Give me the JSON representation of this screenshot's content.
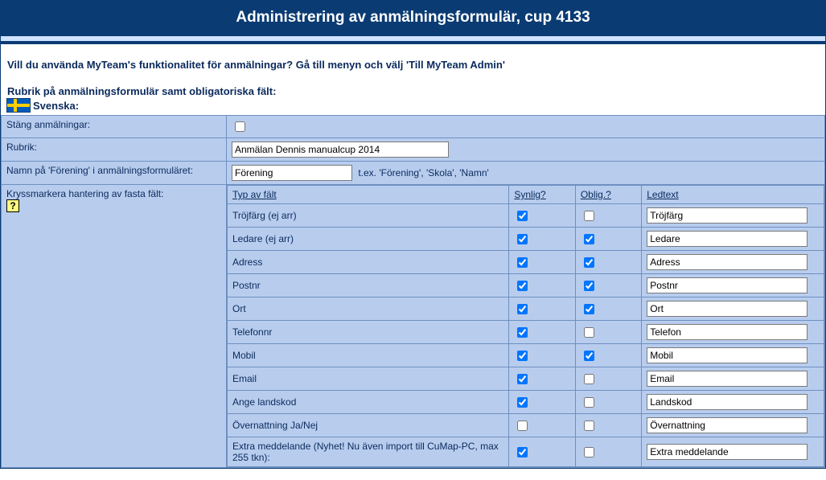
{
  "title": "Administrering av anmälningsformulär, cup 4133",
  "intro": "Vill du använda MyTeam's funktionalitet för anmälningar? Gå till menyn och välj 'Till MyTeam Admin'",
  "section_label": "Rubrik på anmälningsformulär samt obligatoriska fält:",
  "flag_label": "Svenska:",
  "rows": {
    "close_reg": {
      "label": "Stäng anmälningar:",
      "checked": false
    },
    "rubrik": {
      "label": "Rubrik:",
      "value": "Anmälan Dennis manualcup 2014"
    },
    "forening": {
      "label": "Namn på 'Förening' i anmälningsformuläret:",
      "value": "Förening",
      "hint": "t.ex. 'Förening', 'Skola', 'Namn'"
    },
    "fixed_fields_label": "Kryssmarkera hantering av fasta fält:"
  },
  "field_headers": {
    "type": "Typ av fält",
    "synlig": "Synlig?",
    "oblig": "Oblig.?",
    "ledtext": "Ledtext"
  },
  "fields": [
    {
      "type": "Tröjfärg (ej arr)",
      "synlig": true,
      "oblig": false,
      "ledtext": "Tröjfärg"
    },
    {
      "type": "Ledare (ej arr)",
      "synlig": true,
      "oblig": true,
      "ledtext": "Ledare"
    },
    {
      "type": "Adress",
      "synlig": true,
      "oblig": true,
      "ledtext": "Adress"
    },
    {
      "type": "Postnr",
      "synlig": true,
      "oblig": true,
      "ledtext": "Postnr"
    },
    {
      "type": "Ort",
      "synlig": true,
      "oblig": true,
      "ledtext": "Ort"
    },
    {
      "type": "Telefonnr",
      "synlig": true,
      "oblig": false,
      "ledtext": "Telefon"
    },
    {
      "type": "Mobil",
      "synlig": true,
      "oblig": true,
      "ledtext": "Mobil"
    },
    {
      "type": "Email",
      "synlig": true,
      "oblig": false,
      "ledtext": "Email"
    },
    {
      "type": "Ange landskod",
      "synlig": true,
      "oblig": false,
      "ledtext": "Landskod"
    },
    {
      "type": "Övernattning Ja/Nej",
      "synlig": false,
      "oblig": false,
      "ledtext": "Övernattning"
    },
    {
      "type": "Extra meddelande (Nyhet! Nu även import till CuMap-PC, max 255 tkn):",
      "synlig": true,
      "oblig": false,
      "ledtext": "Extra meddelande"
    }
  ],
  "info_glyph": "?"
}
